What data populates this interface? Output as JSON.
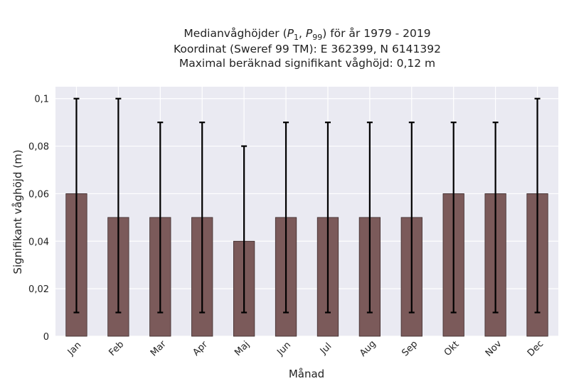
{
  "chart_data": {
    "type": "bar",
    "title_lines": [
      "Medianvåghöjder (P1, P99) för år 1979 - 2019",
      "Koordinat (Sweref 99 TM): E 362399, N 6141392",
      "Maximal beräknad signifikant våghöjd: 0,12 m"
    ],
    "xlabel": "Månad",
    "ylabel": "Signifikant våghöjd (m)",
    "categories": [
      "Jan",
      "Feb",
      "Mar",
      "Apr",
      "Maj",
      "Jun",
      "Jul",
      "Aug",
      "Sep",
      "Okt",
      "Nov",
      "Dec"
    ],
    "values": [
      0.06,
      0.05,
      0.05,
      0.05,
      0.04,
      0.05,
      0.05,
      0.05,
      0.05,
      0.06,
      0.06,
      0.06
    ],
    "error_low": [
      0.01,
      0.01,
      0.01,
      0.01,
      0.01,
      0.01,
      0.01,
      0.01,
      0.01,
      0.01,
      0.01,
      0.01
    ],
    "error_high": [
      0.1,
      0.1,
      0.09,
      0.09,
      0.08,
      0.09,
      0.09,
      0.09,
      0.09,
      0.09,
      0.09,
      0.1
    ],
    "ylim": [
      0,
      0.105
    ],
    "yticks": [
      0,
      0.02,
      0.04,
      0.06,
      0.08,
      0.1
    ],
    "ytick_labels": [
      "0",
      "0,02",
      "0,04",
      "0,06",
      "0,08",
      "0,1"
    ],
    "grid": true,
    "colors": {
      "bar_fill": "#7b5a5a",
      "bar_edge": "#3d2b2b",
      "error_bar": "#000000",
      "plot_background": "#eaeaf2",
      "grid": "#ffffff"
    }
  }
}
